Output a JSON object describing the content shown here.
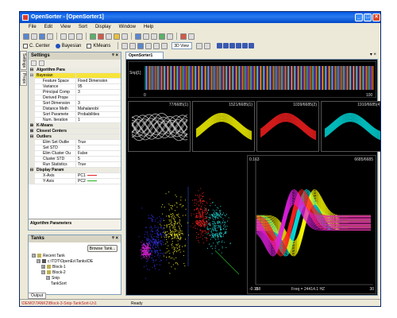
{
  "window": {
    "title": "OpenSorter - [OpenSorter1]",
    "buttons": [
      "_",
      "□",
      "×"
    ]
  },
  "menu": [
    "File",
    "Edit",
    "View",
    "Sort",
    "Display",
    "Window",
    "Help"
  ],
  "toolbar2": {
    "opt1": "C. Center",
    "opt2": "Bayesian",
    "opt3": "KMeans",
    "view_combo": "3D View"
  },
  "side_tabs": [
    "Settings",
    "Props"
  ],
  "settings": {
    "title": "Settings",
    "rows": [
      {
        "type": "cat",
        "gut": "⊟",
        "k": "Algorithm Para"
      },
      {
        "type": "sel",
        "gut": "⊟",
        "k": "Bayesian",
        "v": ""
      },
      {
        "type": "row",
        "k": "Feature Space",
        "v": "Fixed Dimension"
      },
      {
        "type": "row",
        "k": "Variance",
        "v": "95"
      },
      {
        "type": "row",
        "k": "Principal Comp",
        "v": "3"
      },
      {
        "type": "row",
        "k": "Derived Prope",
        "v": ""
      },
      {
        "type": "row",
        "k": "Sort Dimension",
        "v": "3"
      },
      {
        "type": "row",
        "k": "Distance Meth",
        "v": "Mahalanobi"
      },
      {
        "type": "row",
        "k": "Sort Paramete",
        "v": "Probabilities"
      },
      {
        "type": "row",
        "k": "Num. Iteration",
        "v": "1"
      },
      {
        "type": "cat",
        "gut": "⊞",
        "k": "K-Means"
      },
      {
        "type": "cat",
        "gut": "⊞",
        "k": "Closest Centers"
      },
      {
        "type": "cat",
        "gut": "⊟",
        "k": "Outliers"
      },
      {
        "type": "row",
        "k": "Elim Set Outlie",
        "v": "True"
      },
      {
        "type": "row",
        "k": "Set STD",
        "v": "5"
      },
      {
        "type": "row",
        "k": "Elim Cluster Ou",
        "v": "False"
      },
      {
        "type": "row",
        "k": "Cluster STD",
        "v": "5"
      },
      {
        "type": "row",
        "k": "Run Statistics",
        "v": "True"
      },
      {
        "type": "cat",
        "gut": "⊟",
        "k": "Display Param"
      },
      {
        "type": "row",
        "k": "X-Axis",
        "v": "PC1",
        "color": "#e02020"
      },
      {
        "type": "row",
        "k": "Y-Axis",
        "v": "PC2",
        "color": "#20b020"
      }
    ],
    "description_title": "Algorithm Parameters"
  },
  "tanks": {
    "title": "Tanks",
    "browse": "Browse Tank...",
    "tree": [
      {
        "depth": 0,
        "bx": "⊟",
        "icon": "fi",
        "label": "Recent Tank"
      },
      {
        "depth": 1,
        "bx": "⊟",
        "icon": "tk",
        "label": "c:\\TDT\\OpenEx\\Tanks\\DE"
      },
      {
        "depth": 2,
        "bx": "⊞",
        "icon": "fi",
        "label": "Block-1"
      },
      {
        "depth": 2,
        "bx": "⊟",
        "icon": "fi",
        "label": "Block-2"
      },
      {
        "depth": 3,
        "bx": "⊟",
        "icon": "",
        "label": "Snip"
      },
      {
        "depth": 4,
        "bx": "",
        "icon": "",
        "label": "TankSort"
      }
    ]
  },
  "doc_tab": "OpenSorter1",
  "raster": {
    "label": "Snp[1]",
    "x_start": "0",
    "x_end": "100"
  },
  "cards": [
    {
      "text": "77/6685(1)",
      "color": "#dddddd"
    },
    {
      "text": "1521/6685(1)",
      "color": "#ffff00"
    },
    {
      "text": "1039/6685(2)",
      "color": "#ff2020"
    },
    {
      "text": "1910/6685(4)",
      "color": "#00e0e0"
    }
  ],
  "waves": {
    "count": "6685/6685",
    "y_top": "0.163",
    "y_bottom": "-0.158",
    "x_start": "0",
    "x_end": "30",
    "freq": "Freq = 24414.1 HZ"
  },
  "status": {
    "output_tab": "Output",
    "path": "\\DEMO\\TANK2\\Block-3-Snip-TankSort-Lh1",
    "ready": "Ready"
  }
}
